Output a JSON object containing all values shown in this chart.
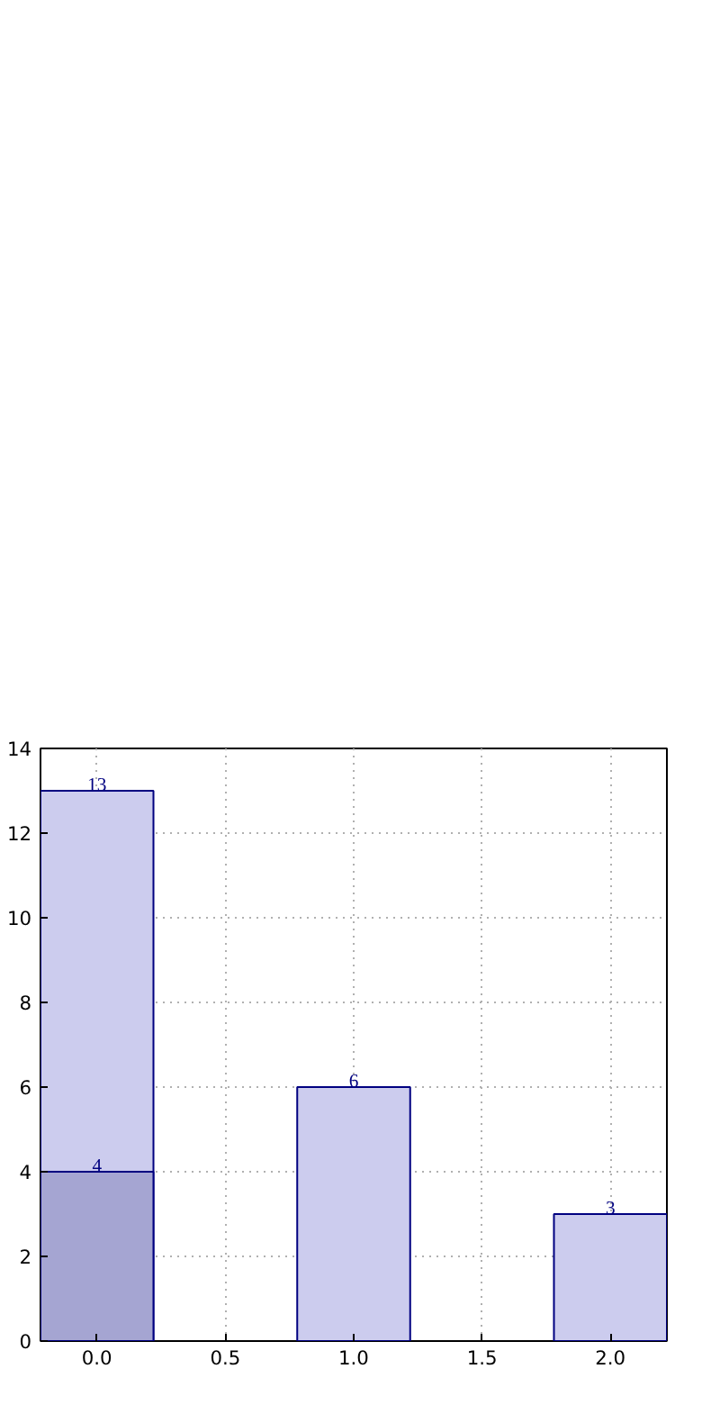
{
  "chart_data": {
    "type": "bar",
    "x": [
      0,
      1,
      2
    ],
    "series": [
      {
        "color": "#ccccee",
        "values": [
          13,
          6,
          3
        ]
      },
      {
        "color": "#a5a5d2",
        "values": [
          4,
          null,
          null
        ]
      }
    ],
    "data_labels": true,
    "grid": true,
    "xlim": [
      -0.22,
      2.22
    ],
    "xticks": [
      {
        "value": 0,
        "label": "0.0"
      },
      {
        "value": 0.5,
        "label": "0.5"
      },
      {
        "value": 1,
        "label": "1.0"
      },
      {
        "value": 1.5,
        "label": "1.5"
      },
      {
        "value": 2,
        "label": "2.0"
      }
    ],
    "ylim": [
      0,
      14
    ],
    "yticks": [
      0,
      2,
      4,
      6,
      8,
      10,
      12,
      14
    ]
  }
}
